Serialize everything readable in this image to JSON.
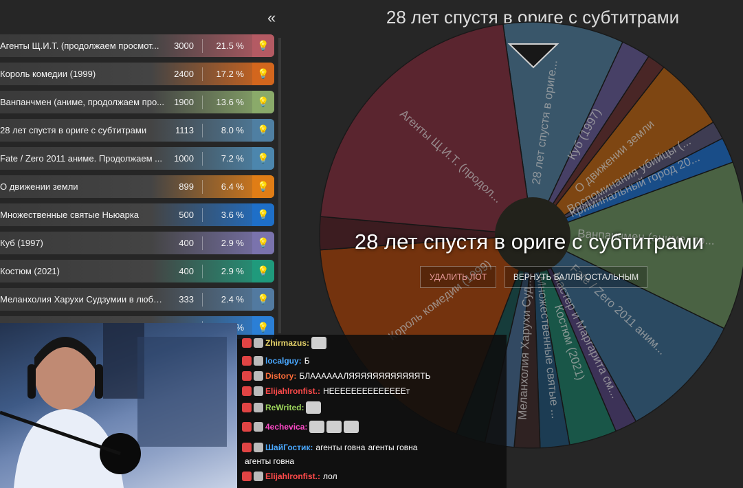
{
  "collapse_label": "«",
  "wheel": {
    "title": "28 лет спустя в ориге с субтитрами",
    "winner": "28 лет спустя в ориге с субтитрами",
    "delete_button": "УДАЛИТЬ ЛОТ",
    "return_button": "ВЕРНУТЬ БАЛЛЫ ОСТАЛЬНЫМ",
    "sector_labels": [
      "28 лет спустя в ориге...",
      "Куб (1997)",
      "О движении земли",
      "Воспоминания убийцы (...",
      "Криминальный город 20...",
      "Ванпанчмен (аниме, пр...",
      "Fate / Zero 2011 аним...",
      "Мастер и Маргарита см...",
      "Костюм (2021)",
      "Множественные святые ...",
      "Меланхолия Харухи Суд...",
      "Король комедии (1999)",
      "Агенты Щ.И.Т. (продол..."
    ]
  },
  "lots": [
    {
      "name": "Агенты Щ.И.Т. (продолжаем просмот...",
      "amount": "3000",
      "percent": "21.5 %",
      "color": "#b45a63"
    },
    {
      "name": "Король комедии (1999)",
      "amount": "2400",
      "percent": "17.2 %",
      "color": "#d3661d"
    },
    {
      "name": "Ванпанчмен (аниме, продолжаем про...",
      "amount": "1900",
      "percent": "13.6 %",
      "color": "#8aaa6a"
    },
    {
      "name": "28 лет спустя в ориге с субтитрами",
      "amount": "1113",
      "percent": "8.0 %",
      "color": "#4f7fa2"
    },
    {
      "name": "Fate / Zero 2011 аниме. Продолжаем ...",
      "amount": "1000",
      "percent": "7.2 %",
      "color": "#4c86ad"
    },
    {
      "name": "О движении земли",
      "amount": "899",
      "percent": "6.4 %",
      "color": "#e07d16"
    },
    {
      "name": "Множественные святые Ньюарка",
      "amount": "500",
      "percent": "3.6 %",
      "color": "#1e6fc8"
    },
    {
      "name": "Куб (1997)",
      "amount": "400",
      "percent": "2.9 %",
      "color": "#7a73ad"
    },
    {
      "name": "Костюм (2021)",
      "amount": "400",
      "percent": "2.9 %",
      "color": "#1f9a7c"
    },
    {
      "name": "Меланхолия Харухи Судзумии в любой...",
      "amount": "333",
      "percent": "2.4 %",
      "color": "#527aa0"
    },
    {
      "name": "",
      "amount": "",
      "percent": "%",
      "color": "#2b7fd6"
    }
  ],
  "chat": [
    {
      "user": "Zhirmazus:",
      "color": "#e6d36a",
      "text": ""
    },
    {
      "user": "localguy:",
      "color": "#4aa8ff",
      "text": "Б"
    },
    {
      "user": "Distory:",
      "color": "#ff6e3a",
      "text": "БЛААААААЛЯЯЯЯЯЯЯЯЯЯЯЯТЬ"
    },
    {
      "user": "ElijahIronfist.:",
      "color": "#ff4a4a",
      "text": "НЕЕЕЕЕЕЕЕЕЕЕЕЕЕт"
    },
    {
      "user": "ReWrited:",
      "color": "#9bd35a",
      "text": ""
    },
    {
      "user": "4echevica:",
      "color": "#ff4ac9",
      "text": ""
    },
    {
      "user": "ШайГостик:",
      "color": "#4aa8ff",
      "text": "агенты говна"
    },
    {
      "user": "",
      "color": "#ffffff",
      "text": "агенты говна"
    },
    {
      "user": "ElijahIronfist.:",
      "color": "#ff4a4a",
      "text": "лол"
    }
  ],
  "chat_extra": "агенты говна"
}
